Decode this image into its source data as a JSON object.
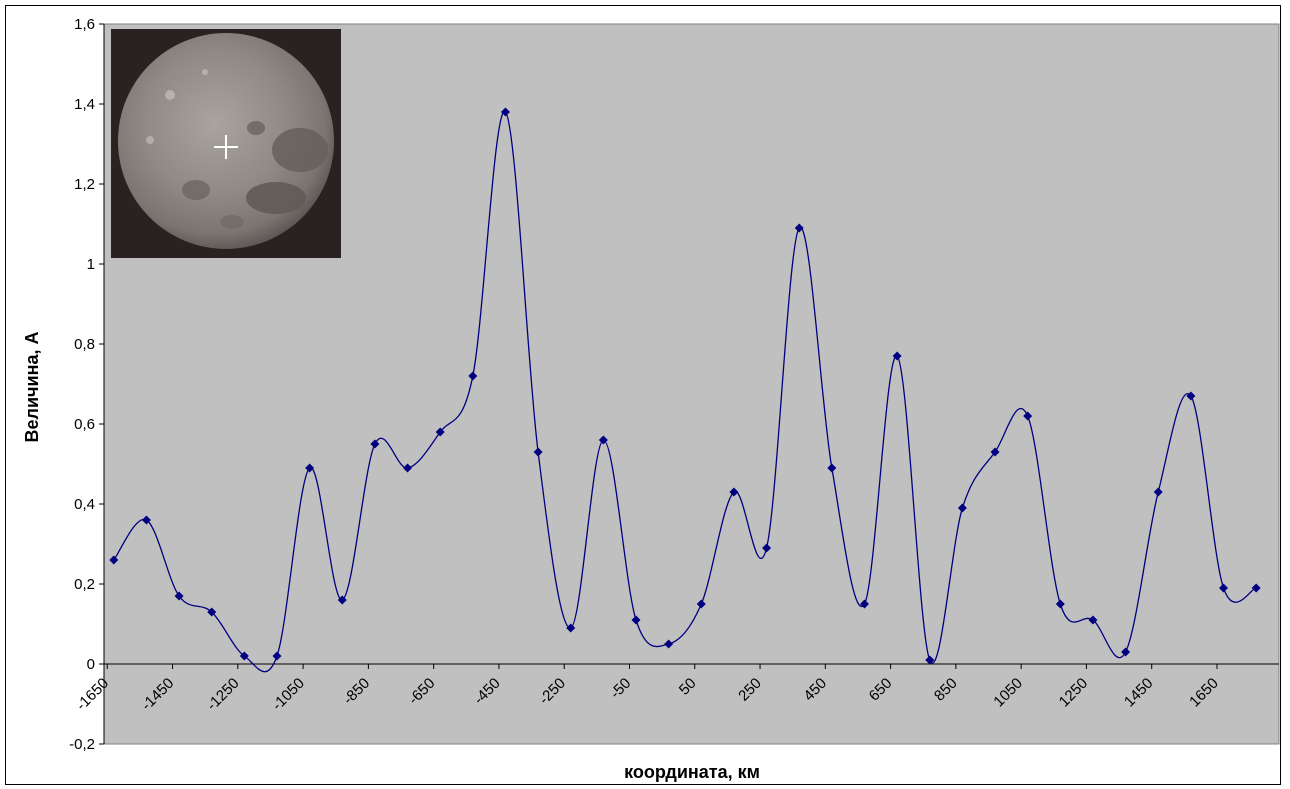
{
  "chart_data": {
    "type": "line",
    "title": "",
    "xlabel": "координата, км",
    "ylabel": "Величина, А",
    "ylim": [
      -0.2,
      1.6
    ],
    "xlim": [
      -1650,
      1700
    ],
    "y_ticks": [
      -0.2,
      0,
      0.2,
      0.4,
      0.6,
      0.8,
      1,
      1.2,
      1.4,
      1.6
    ],
    "y_tick_labels": [
      "-0,2",
      "0",
      "0,2",
      "0,4",
      "0,6",
      "0,8",
      "1",
      "1,2",
      "1,4",
      "1,6"
    ],
    "x_ticks": [
      -1650,
      -1450,
      -1250,
      -1050,
      -850,
      -650,
      -450,
      -250,
      -50,
      50,
      250,
      450,
      650,
      850,
      1050,
      1250,
      1450,
      1650
    ],
    "x_tick_labels": [
      "-1650",
      "-1450",
      "-1250",
      "-1050",
      "-850",
      "-650",
      "-450",
      "-250",
      "-50",
      "50",
      "250",
      "450",
      "650",
      "850",
      "1050",
      "1250",
      "1450",
      "1650"
    ],
    "x_tick_positions": [
      0,
      1,
      2,
      3,
      4,
      5,
      6,
      7,
      8,
      9,
      10,
      11,
      12,
      13,
      14,
      15,
      16,
      17
    ],
    "grid": false,
    "legend": "none",
    "plot_background": "#c0c0c0",
    "series_color": "#000080",
    "inset_image": "moon-photo-with-crosshair",
    "series": [
      {
        "x": [
          0.1,
          0.6,
          1.1,
          1.6,
          2.1,
          2.6,
          3.1,
          3.6,
          4.1,
          4.6,
          5.1,
          5.6,
          6.1,
          6.6,
          7.1,
          7.6,
          8.1,
          8.6,
          9.1,
          9.6,
          10.1,
          10.6,
          11.1,
          11.6,
          12.1,
          12.6,
          13.1,
          13.6,
          14.1,
          14.6,
          15.1,
          15.6,
          16.1,
          16.6,
          17.1,
          17.6
        ],
        "values": [
          0.26,
          0.36,
          0.17,
          0.13,
          0.02,
          0.02,
          0.49,
          0.16,
          0.55,
          0.49,
          0.58,
          0.72,
          1.38,
          0.53,
          0.09,
          0.56,
          0.11,
          0.05,
          0.15,
          0.43,
          0.29,
          1.09,
          0.49,
          0.15,
          0.77,
          0.01,
          0.39,
          0.53,
          0.62,
          0.15,
          0.11,
          0.03,
          0.43,
          0.67,
          0.19,
          0.19
        ]
      }
    ]
  }
}
